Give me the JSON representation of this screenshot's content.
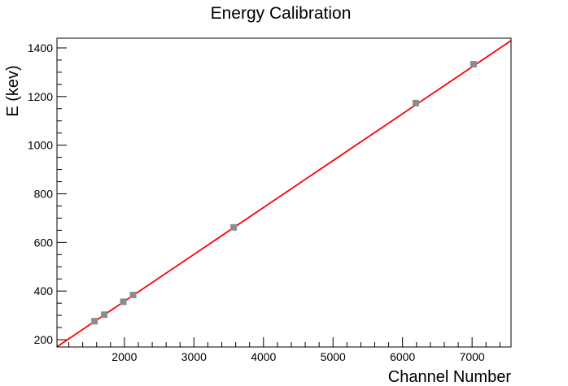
{
  "chart_data": {
    "type": "scatter",
    "title": "Energy Calibration",
    "xlabel": "Channel Number",
    "ylabel": "E (kev)",
    "xlim": [
      1030,
      7560
    ],
    "ylim": [
      170,
      1440
    ],
    "xticks": [
      2000,
      3000,
      4000,
      5000,
      6000,
      7000
    ],
    "yticks": [
      200,
      400,
      600,
      800,
      1000,
      1200,
      1400
    ],
    "grid": false,
    "legend": "none",
    "series": [
      {
        "marker": "square",
        "color": "#8c8c8c",
        "points": [
          {
            "x": 1570,
            "y": 276
          },
          {
            "x": 1710,
            "y": 303
          },
          {
            "x": 1985,
            "y": 356
          },
          {
            "x": 2125,
            "y": 384
          },
          {
            "x": 3570,
            "y": 662
          },
          {
            "x": 6190,
            "y": 1173
          },
          {
            "x": 7020,
            "y": 1333
          }
        ]
      }
    ],
    "fit_line": {
      "color": "#ff0000",
      "x": [
        1030,
        7560
      ],
      "y": [
        171,
        1430
      ]
    }
  }
}
